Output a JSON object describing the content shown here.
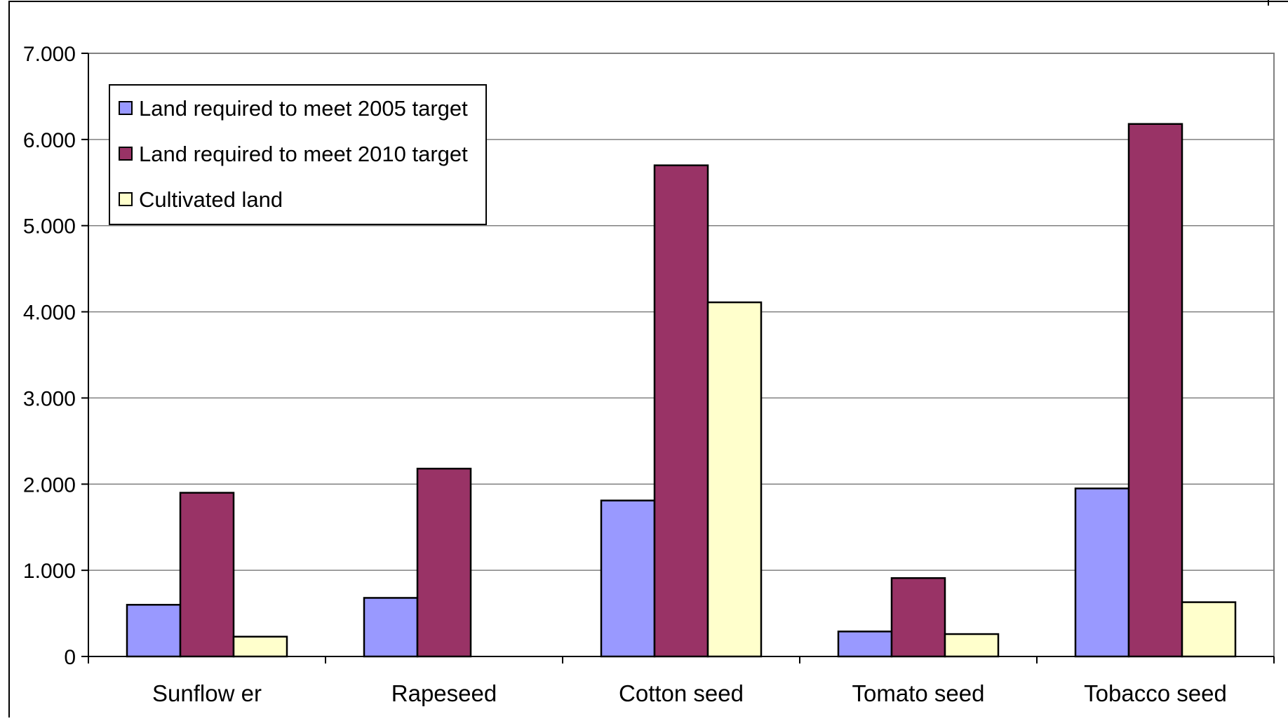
{
  "chart_data": {
    "type": "bar",
    "title": "",
    "xlabel": "",
    "ylabel": "",
    "categories": [
      "Sunflow er",
      "Rapeseed",
      "Cotton seed",
      "Tomato seed",
      "Tobacco seed"
    ],
    "series": [
      {
        "name": "Land required to meet 2005 target",
        "color": "#9999ff",
        "values": [
          600,
          680,
          1810,
          290,
          1950
        ]
      },
      {
        "name": "Land required to meet 2010 target",
        "color": "#993366",
        "values": [
          1900,
          2180,
          5700,
          910,
          6180
        ]
      },
      {
        "name": "Cultivated land",
        "color": "#ffffcc",
        "values": [
          230,
          0,
          4110,
          260,
          630
        ]
      }
    ],
    "ylim": [
      0,
      7000
    ],
    "yticks": [
      0,
      1000,
      2000,
      3000,
      4000,
      5000,
      6000,
      7000
    ],
    "ytick_labels": [
      "0",
      "1.000",
      "2.000",
      "3.000",
      "4.000",
      "5.000",
      "6.000",
      "7.000"
    ],
    "grid": true,
    "legend_position": "top-left"
  }
}
